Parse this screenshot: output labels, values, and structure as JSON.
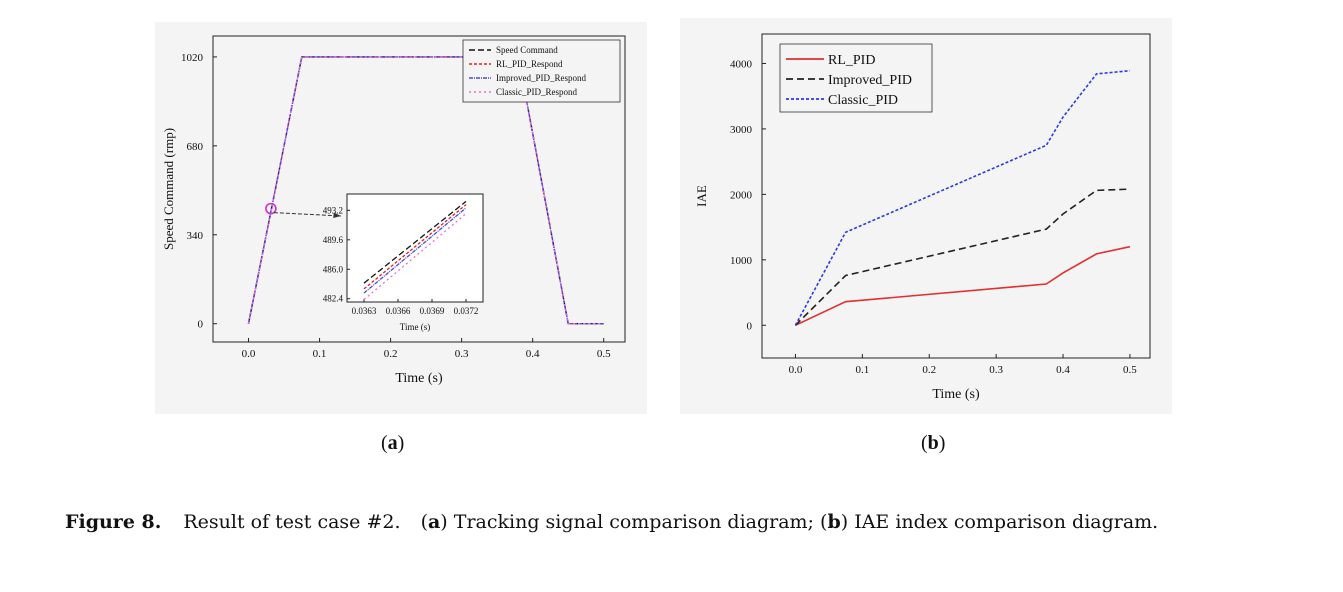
{
  "figure": {
    "sub_a": {
      "open": "(",
      "letter": "a",
      "close": ")"
    },
    "sub_b": {
      "open": "(",
      "letter": "b",
      "close": ")"
    },
    "caption": {
      "label": "Figure 8.",
      "text1": "Result of test case #2.",
      "a_open": "(",
      "a_letter": "a",
      "a_close": ")",
      "text2": "Tracking signal comparison diagram;",
      "b_open": "(",
      "b_letter": "b",
      "b_close": ")",
      "text3": "IAE index comparison diagram."
    }
  },
  "chart_data": [
    {
      "type": "line",
      "xlabel": "Time (s)",
      "ylabel": "Speed Command (rmp)",
      "xlim": [
        -0.05,
        0.53
      ],
      "ylim": [
        -70,
        1100
      ],
      "xticks": [
        0.0,
        0.1,
        0.2,
        0.3,
        0.4,
        0.5
      ],
      "xtick_labels": [
        "0.0",
        "0.1",
        "0.2",
        "0.3",
        "0.4",
        "0.5"
      ],
      "yticks": [
        0,
        340,
        680,
        1020
      ],
      "ytick_labels": [
        "0",
        "340",
        "680",
        "1020"
      ],
      "legend_position": "top-right",
      "series": [
        {
          "name": "Speed Command",
          "color": "#111111",
          "dash": "6,3",
          "x": [
            0.0,
            0.075,
            0.38,
            0.45,
            0.5
          ],
          "y": [
            0,
            1020,
            1020,
            0,
            0
          ]
        },
        {
          "name": "RL_PID_Respond",
          "color": "#e0201c",
          "dash": "3,2",
          "x": [
            0.0,
            0.075,
            0.38,
            0.45,
            0.5
          ],
          "y": [
            0,
            1020,
            1020,
            0,
            0
          ]
        },
        {
          "name": "Improved_PID_Respond",
          "color": "#4a4adf",
          "dash": "4,1,1,1",
          "x": [
            0.0,
            0.075,
            0.38,
            0.45,
            0.5
          ],
          "y": [
            0,
            1020,
            1020,
            0,
            0
          ]
        },
        {
          "name": "Classic_PID_Respond",
          "color": "#e070e0",
          "dash": "2,3",
          "x": [
            0.0,
            0.075,
            0.38,
            0.45,
            0.5
          ],
          "y": [
            0,
            1020,
            1020,
            0,
            0
          ]
        }
      ],
      "marker": {
        "x": 0.0315,
        "y": 440,
        "color": "#d030d0"
      },
      "inset": {
        "xlabel": "Time (s)",
        "xlim": [
          0.03615,
          0.03735
        ],
        "ylim": [
          482.0,
          495.2
        ],
        "xticks": [
          0.0363,
          0.0366,
          0.0369,
          0.0372
        ],
        "xtick_labels": [
          "0.0363",
          "0.0366",
          "0.0369",
          "0.0372"
        ],
        "yticks": [
          482.4,
          486.0,
          489.6,
          493.2
        ],
        "ytick_labels": [
          "482.4",
          "486.0",
          "489.6",
          "493.2"
        ],
        "series": [
          {
            "name": "Speed Command",
            "x": [
              0.0363,
              0.0372
            ],
            "y": [
              484.3,
              494.3
            ]
          },
          {
            "name": "RL_PID_Respond",
            "x": [
              0.0363,
              0.0372
            ],
            "y": [
              483.6,
              493.9
            ]
          },
          {
            "name": "Improved_PID_Respond",
            "x": [
              0.0363,
              0.0372
            ],
            "y": [
              483.1,
              493.5
            ]
          },
          {
            "name": "Classic_PID_Respond",
            "x": [
              0.0363,
              0.0372
            ],
            "y": [
              482.3,
              492.8
            ]
          }
        ]
      }
    },
    {
      "type": "line",
      "xlabel": "Time (s)",
      "ylabel": "IAE",
      "xlim": [
        -0.05,
        0.53
      ],
      "ylim": [
        -500,
        4450
      ],
      "xticks": [
        0.0,
        0.1,
        0.2,
        0.3,
        0.4,
        0.5
      ],
      "xtick_labels": [
        "0.0",
        "0.1",
        "0.2",
        "0.3",
        "0.4",
        "0.5"
      ],
      "yticks": [
        0,
        1000,
        2000,
        3000,
        4000
      ],
      "ytick_labels": [
        "0",
        "1000",
        "2000",
        "3000",
        "4000"
      ],
      "legend_position": "top-left",
      "series": [
        {
          "name": "RL_PID",
          "color": "#e03030",
          "dash": "",
          "x": [
            0.0,
            0.075,
            0.375,
            0.4,
            0.45,
            0.5
          ],
          "y": [
            0,
            360,
            630,
            800,
            1090,
            1200
          ]
        },
        {
          "name": "Improved_PID",
          "color": "#222222",
          "dash": "7,4",
          "x": [
            0.0,
            0.075,
            0.375,
            0.4,
            0.45,
            0.5
          ],
          "y": [
            0,
            760,
            1470,
            1700,
            2060,
            2080
          ]
        },
        {
          "name": "Classic_PID",
          "color": "#2a3ae0",
          "dash": "3,2",
          "x": [
            0.0,
            0.075,
            0.375,
            0.4,
            0.45,
            0.5
          ],
          "y": [
            0,
            1420,
            2750,
            3180,
            3840,
            3890
          ]
        }
      ]
    }
  ]
}
